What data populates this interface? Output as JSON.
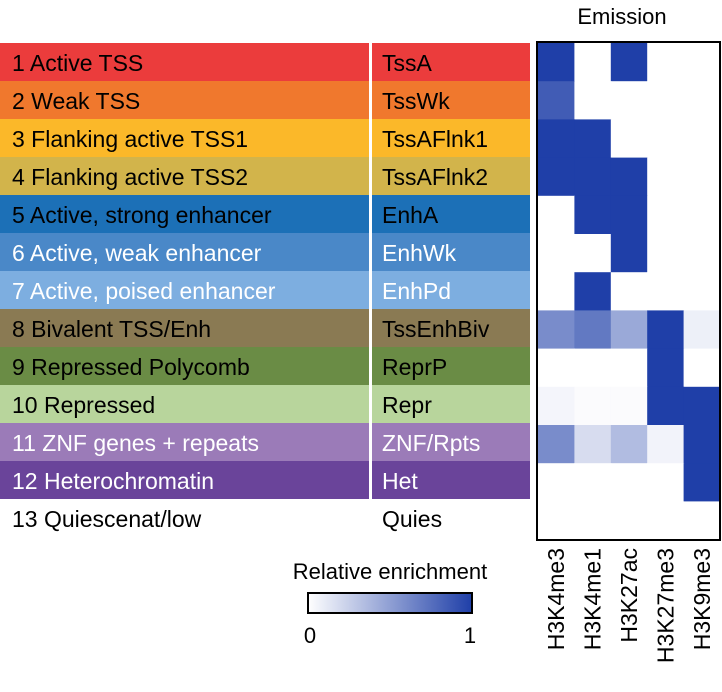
{
  "chart_data": {
    "type": "heatmap",
    "title": "Emission",
    "rows": [
      {
        "state": "1 Active TSS",
        "abbr": "TssA",
        "color": "#eb3c3c"
      },
      {
        "state": "2 Weak TSS",
        "abbr": "TssWk",
        "color": "#f0782d"
      },
      {
        "state": "3 Flanking active TSS1",
        "abbr": "TssAFlnk1",
        "color": "#fbb829"
      },
      {
        "state": "4 Flanking active TSS2",
        "abbr": "TssAFlnk2",
        "color": "#d2b44b"
      },
      {
        "state": "5 Active, strong enhancer",
        "abbr": "EnhA",
        "color": "#1c70b7"
      },
      {
        "state": "6 Active, weak enhancer",
        "abbr": "EnhWk",
        "color": "#4a88c8"
      },
      {
        "state": "7 Active, poised enhancer",
        "abbr": "EnhPd",
        "color": "#7daee0"
      },
      {
        "state": "8 Bivalent TSS/Enh",
        "abbr": "TssEnhBiv",
        "color": "#8a7a53"
      },
      {
        "state": "9 Repressed Polycomb",
        "abbr": "ReprP",
        "color": "#6a8c45"
      },
      {
        "state": "10 Repressed",
        "abbr": "Repr",
        "color": "#b8d59c"
      },
      {
        "state": "11 ZNF genes + repeats",
        "abbr": "ZNF/Rpts",
        "color": "#9b7bb8"
      },
      {
        "state": "12 Heterochromatin",
        "abbr": "Het",
        "color": "#6a449a"
      },
      {
        "state": "13 Quiescenat/low",
        "abbr": "Quies",
        "color": "#ffffff"
      }
    ],
    "columns": [
      "H3K4me3",
      "H3K4me1",
      "H3K27ac",
      "H3K27me3",
      "H3K9me3"
    ],
    "values": [
      [
        1.0,
        0.0,
        1.0,
        0.0,
        0.0
      ],
      [
        0.85,
        0.0,
        0.0,
        0.0,
        0.0
      ],
      [
        1.0,
        1.0,
        0.0,
        0.0,
        0.0
      ],
      [
        1.0,
        1.0,
        1.0,
        0.0,
        0.0
      ],
      [
        0.0,
        1.0,
        1.0,
        0.0,
        0.0
      ],
      [
        0.0,
        0.0,
        1.0,
        0.0,
        0.0
      ],
      [
        0.0,
        1.0,
        0.0,
        0.0,
        0.0
      ],
      [
        0.6,
        0.7,
        0.45,
        1.0,
        0.08
      ],
      [
        0.0,
        0.0,
        0.0,
        1.0,
        0.0
      ],
      [
        0.05,
        0.02,
        0.02,
        1.0,
        1.0
      ],
      [
        0.6,
        0.18,
        0.35,
        0.06,
        1.0
      ],
      [
        0.0,
        0.0,
        0.0,
        0.0,
        1.0
      ],
      [
        0.0,
        0.0,
        0.0,
        0.0,
        0.0
      ]
    ],
    "colorbar": {
      "label": "Relative enrichment",
      "min": "0",
      "max": "1",
      "low_color": "#ffffff",
      "high_color": "#1f3fa8"
    }
  }
}
